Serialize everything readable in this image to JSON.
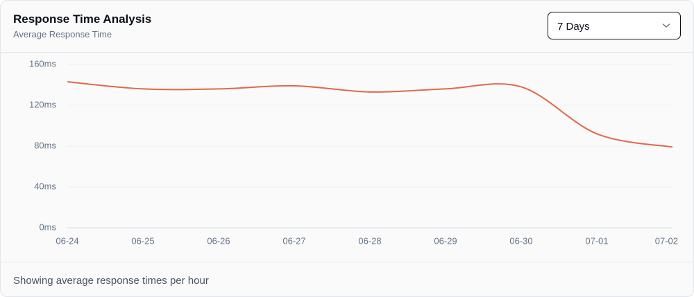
{
  "header": {
    "title": "Response Time Analysis",
    "subtitle": "Average Response Time"
  },
  "range_select": "7 Days",
  "footer": "Showing average response times per hour",
  "chart_data": {
    "type": "line",
    "categories": [
      "06-24",
      "06-25",
      "06-26",
      "06-27",
      "06-28",
      "06-29",
      "06-30",
      "07-01",
      "07-02"
    ],
    "series": [
      {
        "name": "Average Response Time",
        "color": "#e0684a",
        "values": [
          143,
          136,
          136,
          139,
          133,
          136,
          138,
          92,
          79
        ]
      }
    ],
    "ylim": [
      0,
      160
    ],
    "yticks": [
      {
        "value": 0,
        "label": "0ms"
      },
      {
        "value": 40,
        "label": "40ms"
      },
      {
        "value": 80,
        "label": "80ms"
      },
      {
        "value": 120,
        "label": "120ms"
      },
      {
        "value": 160,
        "label": "160ms"
      }
    ],
    "grid": true
  }
}
